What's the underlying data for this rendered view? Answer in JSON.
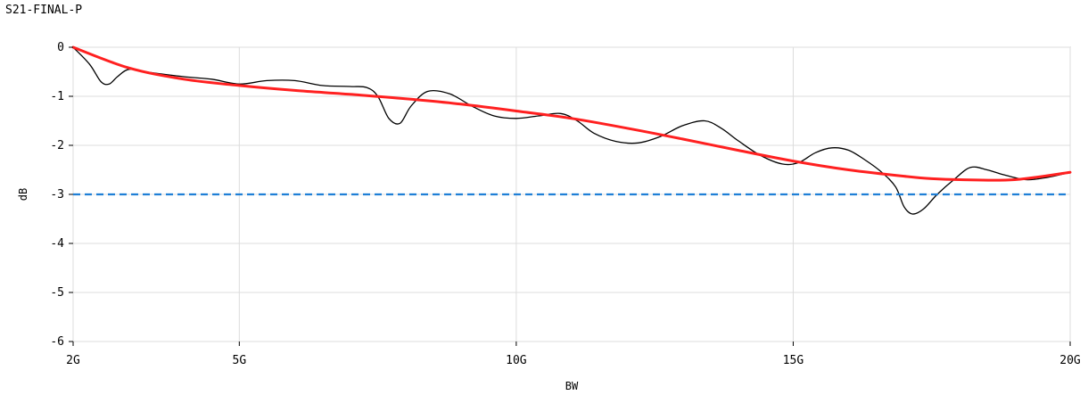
{
  "chart_data": {
    "type": "line",
    "title": "S21-FINAL-P",
    "xlabel": "BW",
    "ylabel": "dB",
    "xlim": [
      2,
      20
    ],
    "ylim": [
      -6,
      0
    ],
    "x_ticks": [
      {
        "value": 2,
        "label": "2G"
      },
      {
        "value": 5,
        "label": "5G"
      },
      {
        "value": 10,
        "label": "10G"
      },
      {
        "value": 15,
        "label": "15G"
      },
      {
        "value": 20,
        "label": "20G"
      }
    ],
    "y_ticks": [
      {
        "value": 0,
        "label": "0"
      },
      {
        "value": -1,
        "label": "-1"
      },
      {
        "value": -2,
        "label": "-2"
      },
      {
        "value": -3,
        "label": "-3"
      },
      {
        "value": -4,
        "label": "-4"
      },
      {
        "value": -5,
        "label": "-5"
      },
      {
        "value": -6,
        "label": "-6"
      }
    ],
    "grid": true,
    "series": [
      {
        "color": "#000000",
        "style": "solid",
        "x": [
          2.0,
          2.3,
          2.5,
          2.65,
          2.8,
          3.0,
          3.3,
          4.0,
          4.5,
          5.0,
          5.5,
          6.0,
          6.5,
          7.0,
          7.3,
          7.5,
          7.7,
          7.9,
          8.1,
          8.4,
          8.8,
          9.2,
          9.6,
          10.0,
          10.4,
          10.8,
          11.1,
          11.4,
          11.8,
          12.2,
          12.6,
          13.0,
          13.4,
          13.7,
          14.0,
          14.4,
          14.8,
          15.1,
          15.4,
          15.7,
          16.0,
          16.3,
          16.6,
          16.85,
          17.0,
          17.15,
          17.35,
          17.6,
          17.9,
          18.2,
          18.5,
          18.8,
          19.2,
          19.6,
          20.0
        ],
        "y": [
          0.0,
          -0.35,
          -0.7,
          -0.75,
          -0.6,
          -0.45,
          -0.5,
          -0.6,
          -0.65,
          -0.75,
          -0.68,
          -0.68,
          -0.78,
          -0.8,
          -0.82,
          -1.0,
          -1.45,
          -1.55,
          -1.2,
          -0.9,
          -0.95,
          -1.2,
          -1.4,
          -1.45,
          -1.4,
          -1.35,
          -1.5,
          -1.75,
          -1.92,
          -1.95,
          -1.82,
          -1.6,
          -1.5,
          -1.65,
          -1.9,
          -2.2,
          -2.38,
          -2.35,
          -2.15,
          -2.05,
          -2.1,
          -2.3,
          -2.55,
          -2.85,
          -3.25,
          -3.4,
          -3.3,
          -3.0,
          -2.7,
          -2.45,
          -2.5,
          -2.6,
          -2.7,
          -2.65,
          -2.55
        ]
      },
      {
        "color": "#ff2020",
        "style": "solid",
        "x": [
          2,
          3,
          4,
          5,
          6,
          7,
          8,
          9,
          10,
          11,
          12,
          13,
          14,
          15,
          16,
          17,
          17.5,
          18,
          19,
          20
        ],
        "y": [
          0.0,
          -0.42,
          -0.65,
          -0.78,
          -0.88,
          -0.96,
          -1.05,
          -1.16,
          -1.3,
          -1.45,
          -1.65,
          -1.87,
          -2.1,
          -2.32,
          -2.5,
          -2.63,
          -2.68,
          -2.7,
          -2.7,
          -2.55
        ]
      },
      {
        "color": "#1f7fd6",
        "style": "dashed",
        "x": [
          2,
          20
        ],
        "y": [
          -3,
          -3
        ]
      }
    ]
  }
}
